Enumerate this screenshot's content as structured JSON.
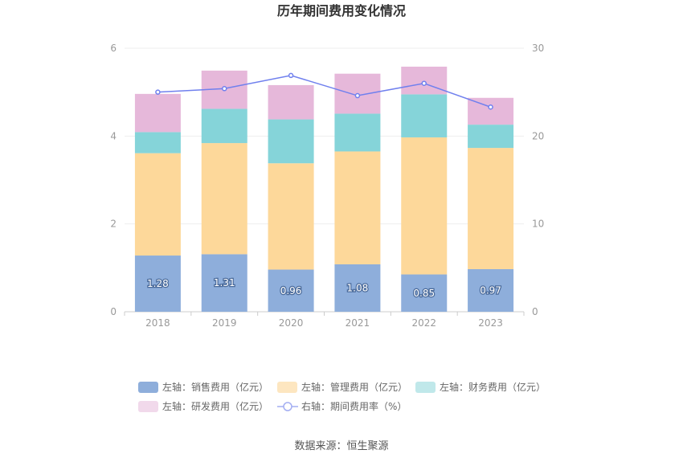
{
  "chart_data": {
    "type": "bar",
    "title": "历年期间费用变化情况",
    "categories": [
      "2018",
      "2019",
      "2020",
      "2021",
      "2022",
      "2023"
    ],
    "series": [
      {
        "name": "左轴：销售费用（亿元）",
        "values": [
          1.28,
          1.31,
          0.96,
          1.08,
          0.85,
          0.97
        ],
        "color": "#8eaedb",
        "axis": "left",
        "kind": "bar"
      },
      {
        "name": "左轴：管理费用（亿元）",
        "values": [
          2.33,
          2.53,
          2.42,
          2.57,
          3.12,
          2.76
        ],
        "color": "#fdd89a",
        "axis": "left",
        "kind": "bar"
      },
      {
        "name": "左轴：财务费用（亿元）",
        "values": [
          0.48,
          0.78,
          1.0,
          0.86,
          0.98,
          0.53
        ],
        "color": "#85d4d9",
        "axis": "left",
        "kind": "bar"
      },
      {
        "name": "左轴：研发费用（亿元）",
        "values": [
          0.87,
          0.87,
          0.78,
          0.91,
          0.63,
          0.61
        ],
        "color": "#e6b8da",
        "axis": "left",
        "kind": "bar"
      },
      {
        "name": "右轴：期间费用率（%）",
        "values": [
          25.0,
          25.4,
          26.9,
          24.6,
          26.0,
          23.3
        ],
        "color": "#7080ee",
        "axis": "right",
        "kind": "line"
      }
    ],
    "bar_labels": [
      "1.28",
      "1.31",
      "0.96",
      "1.08",
      "0.85",
      "0.97"
    ],
    "left_axis": {
      "min": 0,
      "max": 6,
      "ticks": [
        "0",
        "2",
        "4",
        "6"
      ]
    },
    "right_axis": {
      "min": 0,
      "max": 30,
      "ticks": [
        "0",
        "10",
        "20",
        "30"
      ]
    },
    "grid": true,
    "legend_position": "bottom"
  },
  "legend_colors": [
    "#8eaedb",
    "#fde6c0",
    "#c0e8ea",
    "#f1d9eb",
    "#a3aef2"
  ],
  "source": "数据来源：恒生聚源"
}
